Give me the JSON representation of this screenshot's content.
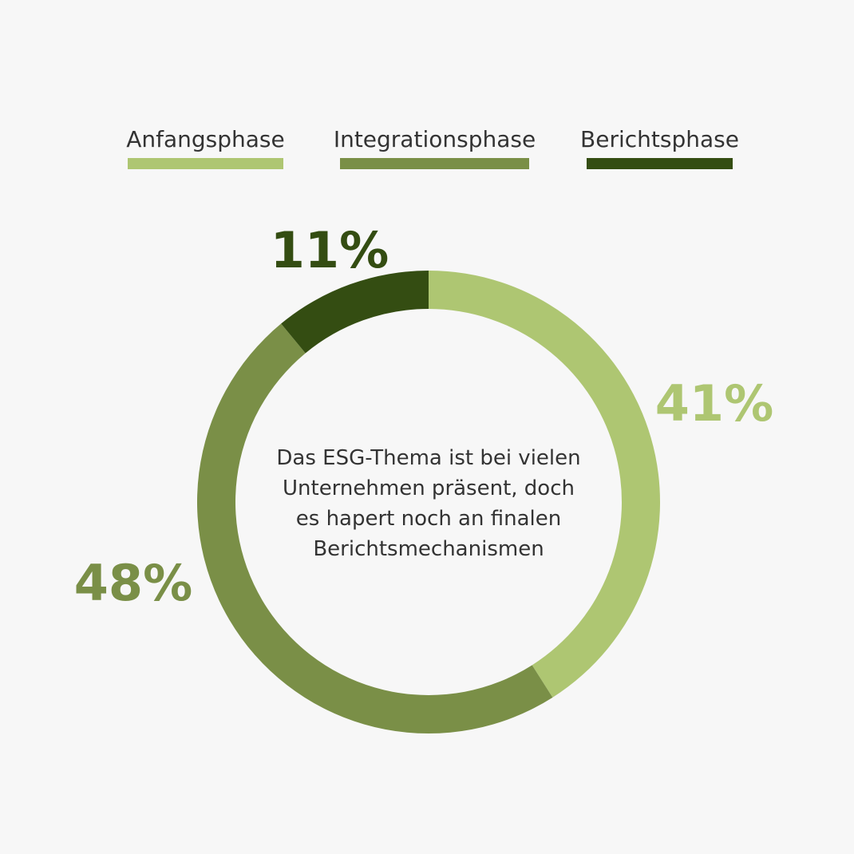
{
  "chart_data": {
    "type": "donut",
    "categories": [
      "Anfangsphase",
      "Integrationsphase",
      "Berichtsphase"
    ],
    "values": [
      41,
      48,
      11
    ],
    "value_labels": [
      "41%",
      "48%",
      "11%"
    ],
    "colors": [
      "#aec672",
      "#7a8f47",
      "#344d12"
    ],
    "annotation": [
      "Das ESG-Thema ist bei vielen",
      "Unternehmen präsent, doch",
      "es hapert noch an finalen",
      "Berichtsmechanismen"
    ]
  }
}
